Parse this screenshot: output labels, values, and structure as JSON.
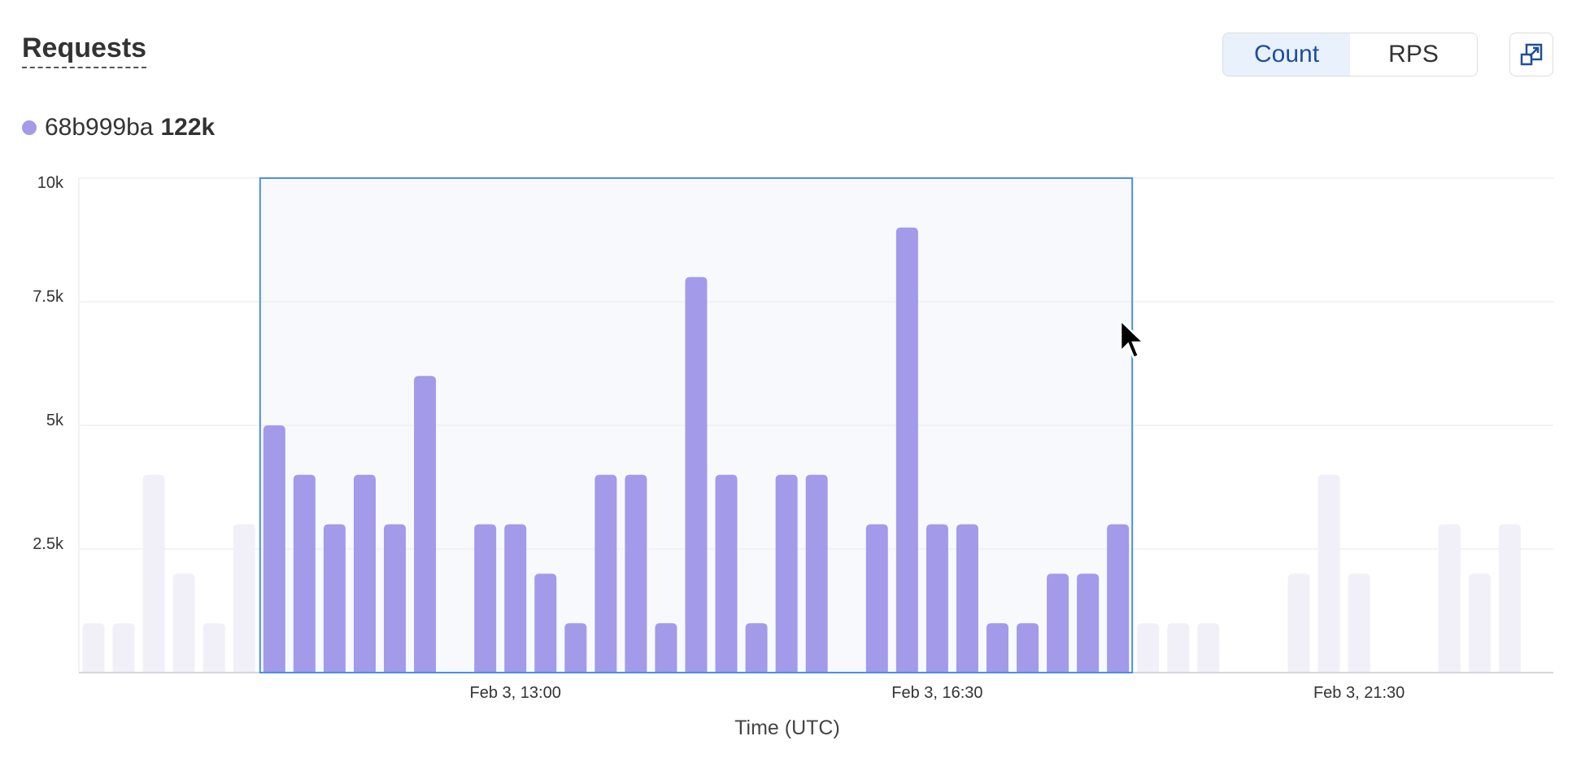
{
  "header": {
    "title": "Requests",
    "toggle": [
      {
        "label": "Count",
        "active": true
      },
      {
        "label": "RPS",
        "active": false
      }
    ],
    "expand_icon": "expand-icon"
  },
  "legend": {
    "series_name": "68b999ba",
    "total": "122k",
    "color": "#a39ae9"
  },
  "chart_data": {
    "type": "bar",
    "xlabel": "Time (UTC)",
    "ylabel": "",
    "ylim": [
      0,
      10000
    ],
    "y_ticks": [
      "2.5k",
      "5k",
      "7.5k",
      "10k"
    ],
    "y_tick_values": [
      2500,
      5000,
      7500,
      10000
    ],
    "x_ticks": [
      "Feb 3, 13:00",
      "Feb 3, 16:30",
      "Feb 3, 21:30"
    ],
    "grid": true,
    "series": [
      {
        "name": "68b999ba",
        "color": "#a39ae9",
        "values": [
          1000,
          1000,
          4000,
          2000,
          1000,
          3000,
          5000,
          4000,
          3000,
          4000,
          3000,
          6000,
          0,
          3000,
          3000,
          2000,
          1000,
          4000,
          4000,
          1000,
          8000,
          4000,
          1000,
          4000,
          4000,
          0,
          3000,
          9000,
          3000,
          3000,
          1000,
          1000,
          2000,
          2000,
          3000,
          1000,
          1000,
          1000,
          0,
          0,
          2000,
          4000,
          2000,
          0,
          0,
          3000,
          2000,
          3000
        ]
      }
    ],
    "selection": {
      "first_bar": 6,
      "last_bar": 34,
      "border_color": "#4a90e2",
      "fill_color": "#f7f9fc"
    },
    "dimmed_bar_color": "#f1f0f8"
  }
}
